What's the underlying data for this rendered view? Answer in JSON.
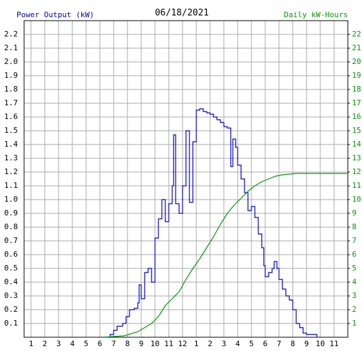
{
  "chart_data": {
    "type": "line",
    "title": "06/18/2021",
    "y_label": "Power Output (kW)",
    "y2_label": "Daily kW-Hours",
    "xlim": [
      0.5,
      24
    ],
    "xticks": [
      1,
      2,
      3,
      4,
      5,
      6,
      7,
      8,
      9,
      10,
      11,
      12,
      {
        "value": 13,
        "label": "1"
      },
      {
        "value": 14,
        "label": "2"
      },
      {
        "value": 15,
        "label": "3"
      },
      {
        "value": 16,
        "label": "4"
      },
      {
        "value": 17,
        "label": "5"
      },
      {
        "value": 18,
        "label": "6"
      },
      {
        "value": 19,
        "label": "7"
      },
      {
        "value": 20,
        "label": "8"
      },
      {
        "value": 21,
        "label": "9"
      },
      {
        "value": 22,
        "label": "10"
      },
      {
        "value": 23,
        "label": "11"
      }
    ],
    "ylim": [
      0,
      2.3
    ],
    "yticks": [
      0.1,
      0.2,
      0.3,
      0.4,
      0.5,
      0.6,
      0.7,
      0.8,
      0.9,
      {
        "value": 1,
        "label": "1.0"
      },
      1.1,
      1.2,
      1.3,
      1.4,
      1.5,
      1.6,
      1.7,
      1.8,
      1.9,
      {
        "value": 2,
        "label": "2.0"
      },
      2.1,
      2.2
    ],
    "y2lim": [
      0,
      23
    ],
    "y2ticks": [
      1,
      2,
      3,
      4,
      5,
      6,
      7,
      8,
      9,
      10,
      11,
      12,
      13,
      14,
      15,
      16,
      17,
      18,
      19,
      20,
      21,
      22
    ],
    "grid": true,
    "series": [
      {
        "name": "Power Output (kW)",
        "color": "#0000cc",
        "step": true,
        "x": [
          6.25,
          6.75,
          7,
          7.25,
          7.65,
          7.9,
          8.15,
          8.5,
          8.75,
          8.85,
          9,
          9.25,
          9.5,
          9.75,
          10,
          10.25,
          10.5,
          10.75,
          11,
          11.25,
          11.35,
          11.5,
          11.75,
          12,
          12.25,
          12.5,
          12.75,
          13,
          13.25,
          13.5,
          13.75,
          14,
          14.25,
          14.5,
          14.75,
          15,
          15.25,
          15.5,
          15.65,
          15.85,
          16,
          16.25,
          16.5,
          16.75,
          17,
          17.25,
          17.5,
          17.75,
          17.9,
          18,
          18.25,
          18.5,
          18.65,
          18.85,
          19,
          19.25,
          19.5,
          19.75,
          20,
          20.25,
          20.5,
          20.75,
          21,
          21.75
        ],
        "values": [
          0,
          0.02,
          0.05,
          0.08,
          0.1,
          0.15,
          0.2,
          0.21,
          0.25,
          0.38,
          0.28,
          0.47,
          0.5,
          0.4,
          0.72,
          0.86,
          1.0,
          0.84,
          0.97,
          1.1,
          1.47,
          0.97,
          0.9,
          1.1,
          1.5,
          0.98,
          1.42,
          1.65,
          1.66,
          1.64,
          1.63,
          1.62,
          1.6,
          1.58,
          1.56,
          1.53,
          1.52,
          1.24,
          1.44,
          1.38,
          1.25,
          1.15,
          1.05,
          0.92,
          0.95,
          0.87,
          0.75,
          0.65,
          0.52,
          0.44,
          0.47,
          0.5,
          0.55,
          0.5,
          0.42,
          0.35,
          0.3,
          0.27,
          0.2,
          0.1,
          0.07,
          0.03,
          0.02,
          0
        ]
      },
      {
        "name": "Daily kW-Hours",
        "color": "#009900",
        "axis": "y2",
        "step": false,
        "x": [
          6.25,
          7.75,
          8.75,
          9.75,
          10.25,
          10.75,
          11.25,
          11.75,
          12.25,
          12.75,
          13.25,
          13.75,
          14.25,
          14.75,
          15.25,
          15.75,
          16.25,
          16.75,
          17.25,
          17.75,
          18.25,
          18.75,
          19.25,
          19.75,
          20.25,
          24
        ],
        "values": [
          0,
          0.1,
          0.4,
          1,
          1.5,
          2.3,
          2.8,
          3.3,
          4.2,
          5,
          5.7,
          6.5,
          7.3,
          8.2,
          9,
          9.6,
          10.1,
          10.6,
          11,
          11.3,
          11.5,
          11.7,
          11.8,
          11.85,
          11.9,
          11.9
        ]
      }
    ]
  }
}
